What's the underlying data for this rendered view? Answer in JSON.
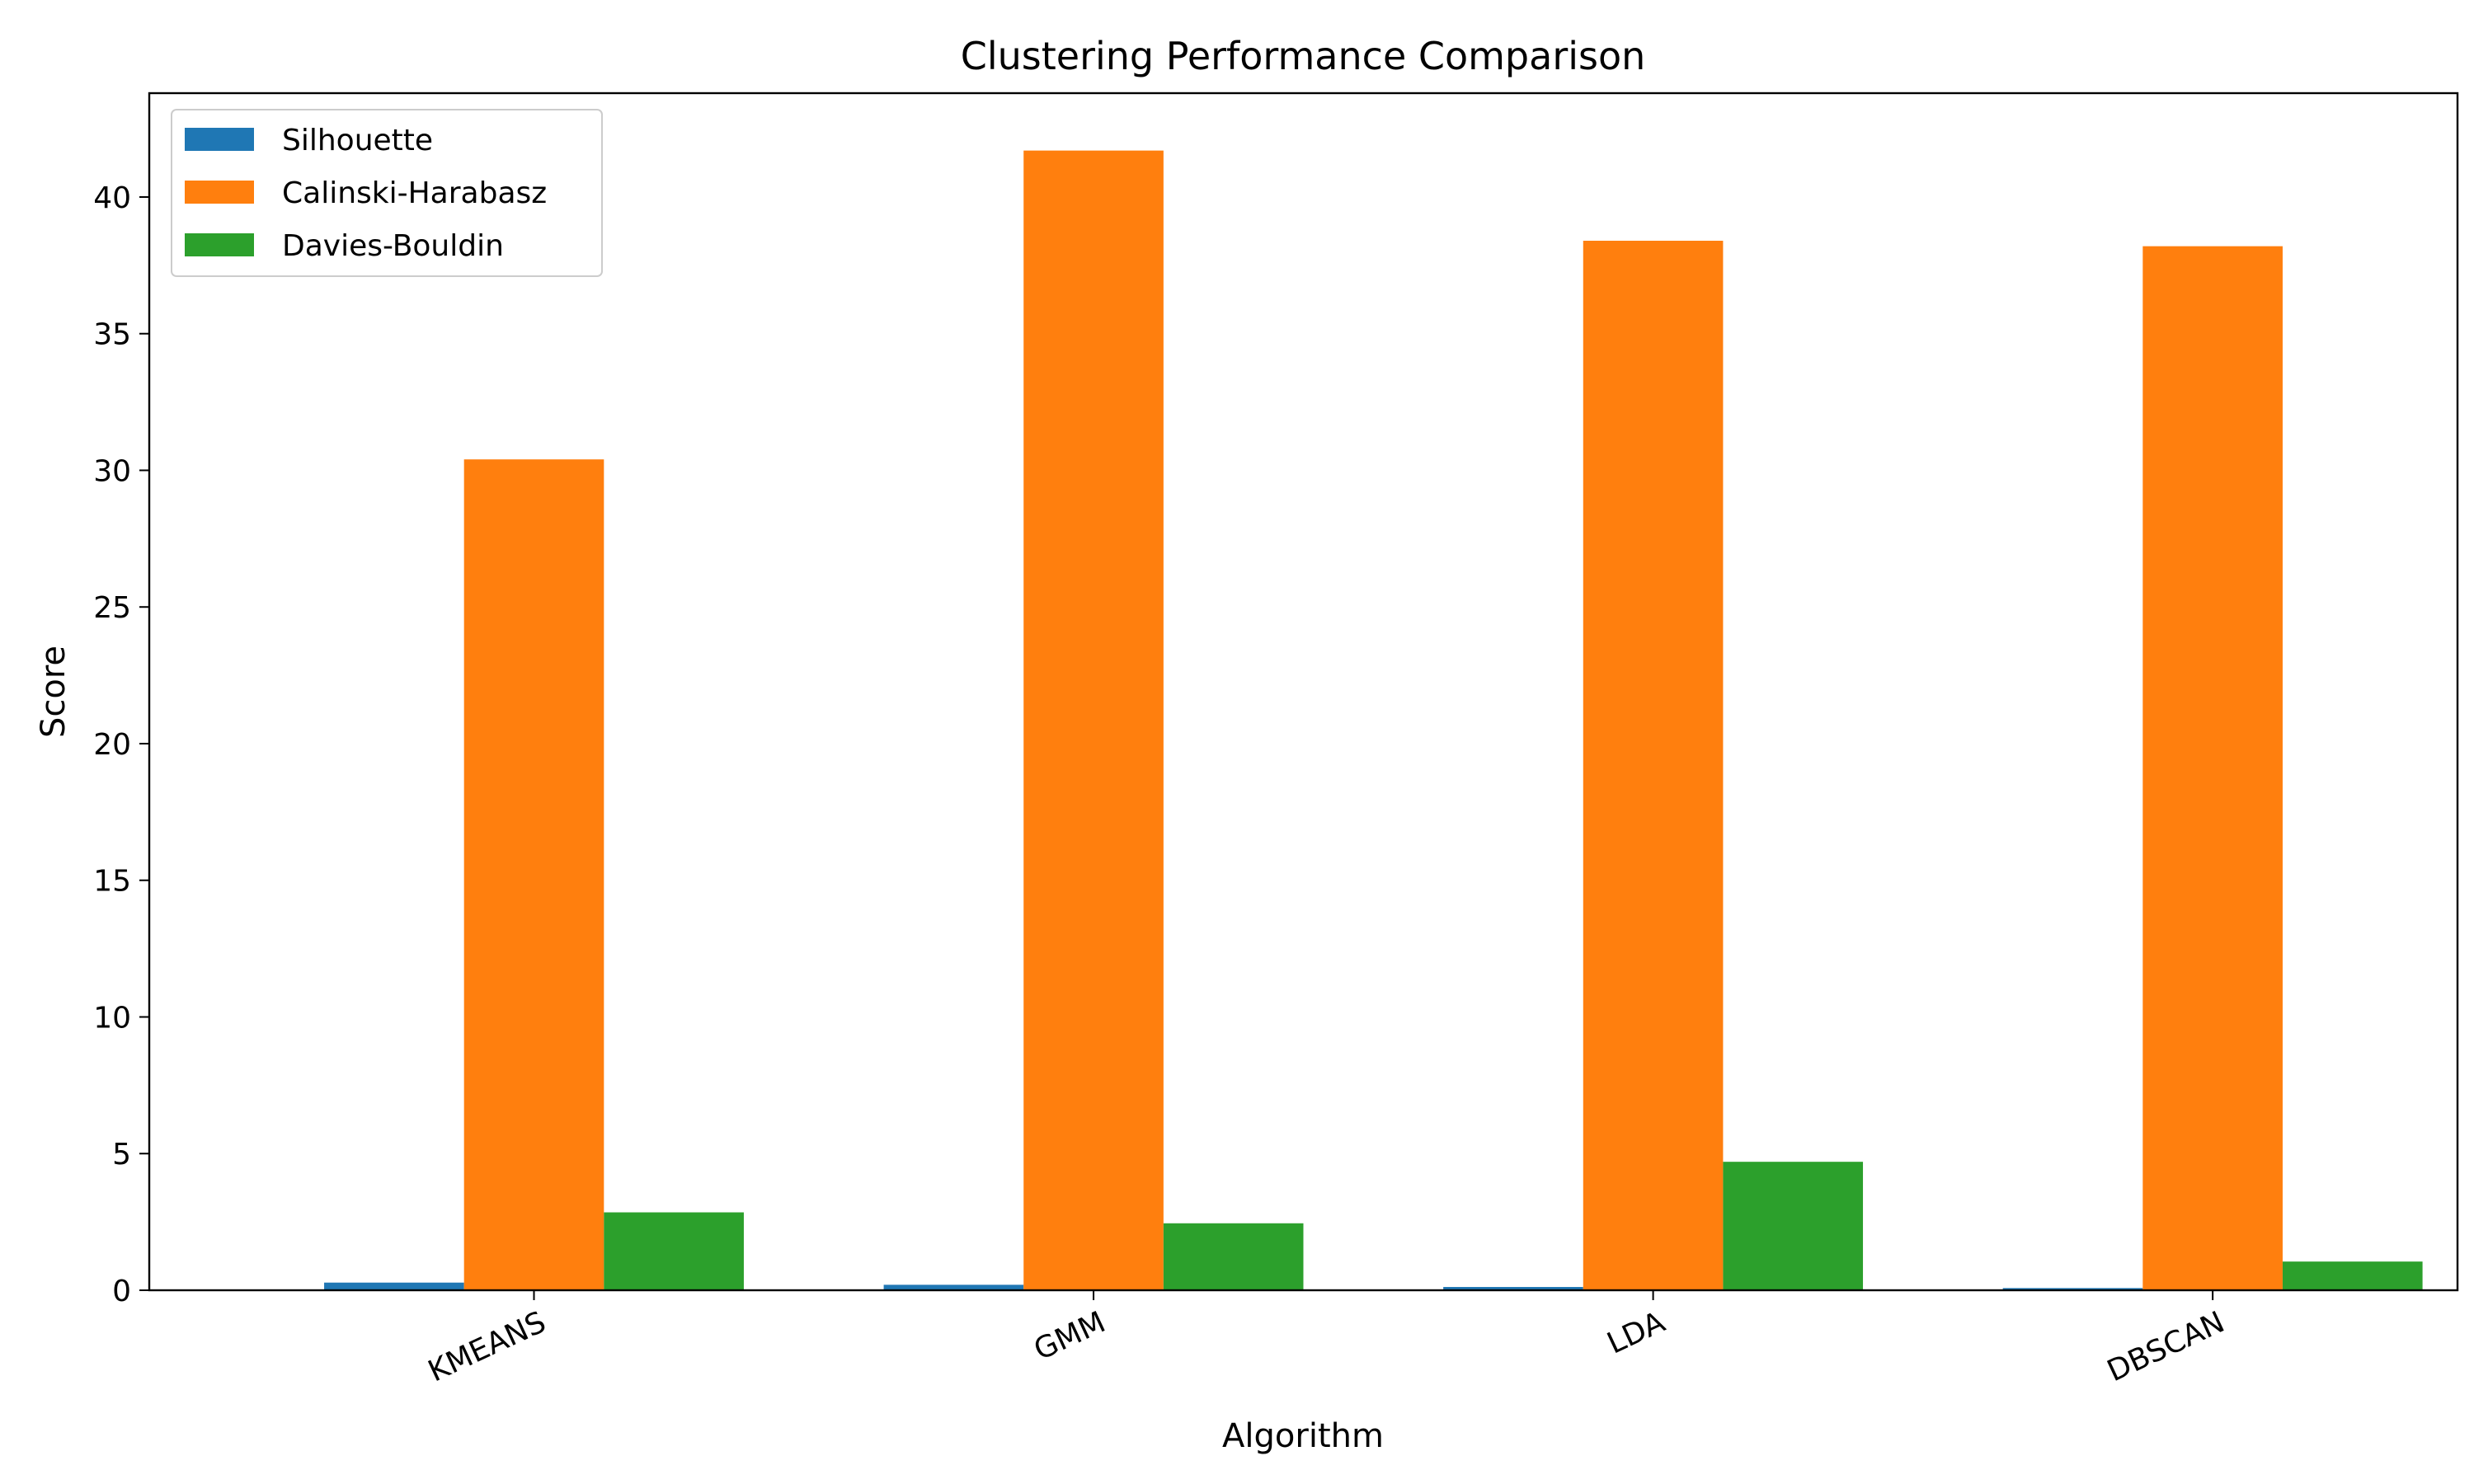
{
  "chart_data": {
    "type": "bar",
    "title": "Clustering Performance Comparison",
    "xlabel": "Algorithm",
    "ylabel": "Score",
    "categories": [
      "KMEANS",
      "GMM",
      "LDA",
      "DBSCAN"
    ],
    "series": [
      {
        "name": "Silhouette",
        "color": "#1f77b4",
        "values": [
          0.28,
          0.2,
          0.12,
          0.08
        ]
      },
      {
        "name": "Calinski-Harabasz",
        "color": "#ff7f0e",
        "values": [
          30.4,
          41.7,
          38.4,
          38.2
        ]
      },
      {
        "name": "Davies-Bouldin",
        "color": "#2ca02c",
        "values": [
          2.85,
          2.45,
          4.7,
          1.05
        ]
      }
    ],
    "ylim": [
      0,
      43.8
    ],
    "yticks": [
      0,
      5,
      10,
      15,
      20,
      25,
      30,
      35,
      40
    ],
    "legend_position": "top-left",
    "grid": false,
    "xtick_rotation": "rotated"
  }
}
